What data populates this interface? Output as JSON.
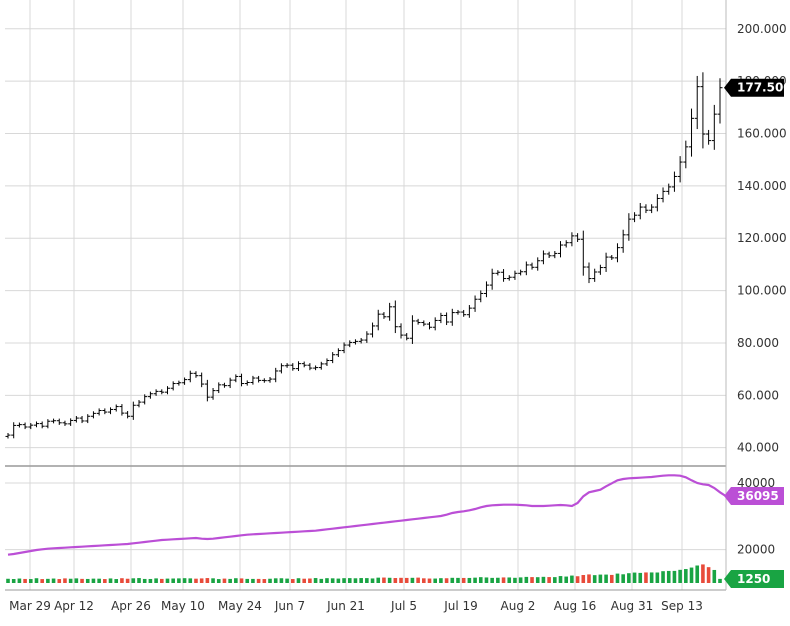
{
  "chart_data": {
    "type": "ohlc",
    "x_labels": [
      "Mar 29",
      "Apr 12",
      "Apr 26",
      "May 10",
      "May 24",
      "Jun 7",
      "Jun 21",
      "Jul 5",
      "Jul 19",
      "Aug 2",
      "Aug 16",
      "Aug 31",
      "Sep 13"
    ],
    "price_ticks": [
      "40.000",
      "60.000",
      "80.000",
      "100.000",
      "120.000",
      "140.000",
      "160.000",
      "180.000",
      "200.000"
    ],
    "price_range": [
      33,
      211
    ],
    "last_price": {
      "label": "177.500",
      "value": 177.5
    },
    "volume_ticks": [
      "20000",
      "40000"
    ],
    "volume_range": [
      10000,
      43000
    ],
    "volume_avg_last": {
      "label": "36095",
      "value": 36095
    },
    "volume_last": {
      "label": "1250",
      "value": 1250
    },
    "colors": {
      "up": "#19a443",
      "down": "#e84b3a",
      "line": "#bb4fd6",
      "price": "#000000"
    },
    "closes": [
      44.8,
      48.5,
      48.8,
      47.9,
      48.6,
      49.2,
      48.2,
      50.1,
      50.3,
      49.5,
      49.1,
      50.4,
      51.3,
      50.2,
      52.0,
      53.1,
      54.2,
      53.6,
      54.6,
      55.7,
      53.2,
      52.0,
      56.2,
      57.4,
      59.5,
      60.6,
      61.5,
      61.2,
      62.7,
      64.5,
      64.8,
      66.0,
      68.4,
      67.5,
      64.3,
      59.3,
      61.8,
      64.0,
      63.7,
      65.8,
      67.2,
      64.5,
      64.9,
      66.6,
      65.7,
      65.6,
      66.2,
      69.3,
      71.3,
      71.5,
      70.2,
      72.1,
      71.5,
      70.4,
      70.6,
      72.0,
      73.3,
      75.5,
      77.1,
      79.2,
      80.2,
      80.6,
      81.1,
      83.4,
      86.5,
      91.0,
      90.0,
      93.8,
      86.2,
      83.0,
      81.8,
      88.4,
      87.8,
      87.2,
      86.0,
      88.6,
      90.5,
      88.0,
      91.6,
      91.8,
      90.8,
      93.3,
      96.7,
      98.9,
      102.1,
      106.6,
      107.0,
      104.6,
      105.1,
      106.6,
      107.2,
      109.8,
      108.9,
      111.4,
      114.0,
      113.3,
      114.2,
      117.4,
      118.3,
      120.9,
      119.6,
      109.0,
      104.6,
      107.1,
      108.8,
      112.8,
      112.5,
      116.4,
      121.3,
      127.3,
      128.8,
      131.9,
      130.7,
      131.9,
      135.2,
      137.9,
      139.6,
      143.6,
      149.1,
      154.9,
      165.8,
      177.9,
      159.8,
      157.3,
      167.4,
      177.5
    ],
    "volumes": [
      1280,
      1210,
      1350,
      1230,
      1200,
      1450,
      1190,
      1260,
      1350,
      1200,
      1400,
      1290,
      1400,
      1250,
      1230,
      1320,
      1310,
      1200,
      1380,
      1200,
      1450,
      1290,
      1420,
      1500,
      1230,
      1220,
      1400,
      1240,
      1330,
      1360,
      1400,
      1460,
      1400,
      1310,
      1390,
      1500,
      1420,
      1190,
      1330,
      1240,
      1450,
      1390,
      1240,
      1240,
      1240,
      1200,
      1290,
      1420,
      1440,
      1330,
      1200,
      1450,
      1300,
      1360,
      1500,
      1250,
      1460,
      1420,
      1340,
      1460,
      1480,
      1430,
      1500,
      1480,
      1380,
      1620,
      1650,
      1580,
      1510,
      1570,
      1540,
      1570,
      1630,
      1420,
      1350,
      1350,
      1460,
      1440,
      1570,
      1550,
      1530,
      1530,
      1620,
      1770,
      1680,
      1550,
      1590,
      1690,
      1680,
      1570,
      1700,
      1850,
      1790,
      1760,
      1870,
      1800,
      1780,
      2100,
      1950,
      2250,
      2050,
      2420,
      2600,
      2380,
      2550,
      2550,
      2450,
      2850,
      2640,
      2970,
      3160,
      3060,
      3200,
      3200,
      3180,
      3580,
      3660,
      3670,
      3990,
      4230,
      4680,
      5300,
      5630,
      4800,
      3950,
      1250
    ],
    "volume_avg": [
      18500,
      18700,
      19000,
      19300,
      19600,
      19900,
      20100,
      20300,
      20400,
      20500,
      20600,
      20700,
      20800,
      20900,
      21000,
      21100,
      21200,
      21300,
      21400,
      21500,
      21600,
      21700,
      21900,
      22100,
      22300,
      22500,
      22700,
      22900,
      23000,
      23100,
      23200,
      23300,
      23400,
      23500,
      23300,
      23200,
      23300,
      23500,
      23700,
      23900,
      24100,
      24300,
      24500,
      24600,
      24700,
      24800,
      24900,
      25000,
      25100,
      25200,
      25300,
      25400,
      25500,
      25600,
      25700,
      25900,
      26100,
      26300,
      26500,
      26700,
      26900,
      27100,
      27300,
      27500,
      27700,
      27900,
      28100,
      28300,
      28500,
      28700,
      28900,
      29100,
      29300,
      29500,
      29700,
      29900,
      30100,
      30500,
      31000,
      31300,
      31500,
      31800,
      32200,
      32700,
      33100,
      33300,
      33400,
      33500,
      33500,
      33500,
      33400,
      33300,
      33100,
      33100,
      33100,
      33200,
      33300,
      33400,
      33300,
      33100,
      34000,
      36000,
      37200,
      37600,
      38000,
      39000,
      39900,
      40800,
      41200,
      41400,
      41500,
      41600,
      41700,
      41800,
      42000,
      42200,
      42300,
      42300,
      42200,
      41700,
      40800,
      40000,
      39600,
      39400,
      38500,
      37200,
      36095
    ]
  }
}
